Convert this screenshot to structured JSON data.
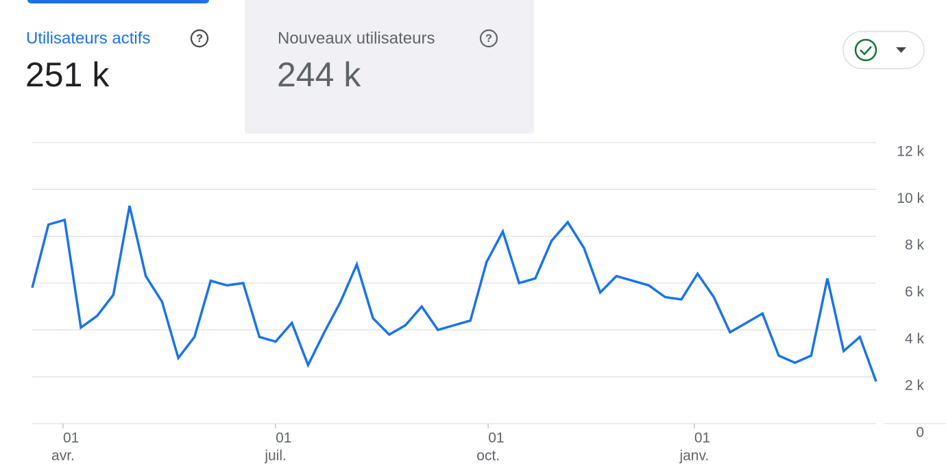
{
  "tabs": [
    {
      "label": "Utilisateurs actifs",
      "value": "251 k"
    },
    {
      "label": "Nouveaux utilisateurs",
      "value": "244 k"
    }
  ],
  "chart_data": {
    "type": "line",
    "color": "#1a73e8",
    "x": [
      0,
      1,
      2,
      3,
      4,
      5,
      6,
      7,
      8,
      9,
      10,
      11,
      12,
      13,
      14,
      15,
      16,
      17,
      18,
      19,
      20,
      21,
      22,
      23,
      24,
      25,
      26,
      27,
      28,
      29,
      30,
      31,
      32,
      33,
      34,
      35,
      36,
      37,
      38,
      39,
      40,
      41,
      42,
      43,
      44,
      45,
      46,
      47,
      48,
      49,
      50,
      51,
      52
    ],
    "values": [
      5800,
      8500,
      8700,
      4100,
      4600,
      5500,
      9300,
      6300,
      5200,
      2800,
      3700,
      6100,
      5900,
      6000,
      3700,
      3500,
      4300,
      2500,
      3900,
      5200,
      6800,
      4500,
      3800,
      4200,
      5000,
      4000,
      4200,
      4400,
      6900,
      8200,
      6000,
      6200,
      7800,
      8600,
      7500,
      5600,
      6300,
      6100,
      5900,
      5400,
      5300,
      6400,
      5400,
      3900,
      4300,
      4700,
      2900,
      2600,
      2900,
      6200,
      3100,
      3700,
      1800
    ],
    "xlim": [
      0,
      52
    ],
    "xticks": [
      {
        "value": 1.9,
        "label": "01"
      },
      {
        "value": 15,
        "label": "01"
      },
      {
        "value": 28.1,
        "label": "01"
      },
      {
        "value": 40.8,
        "label": "01"
      }
    ],
    "x_months": [
      "avr.",
      "juil.",
      "oct.",
      "janv."
    ],
    "ylim": [
      0,
      12000
    ],
    "yticks": [
      0,
      {
        "value": 2000,
        "label": "2 k"
      },
      {
        "value": 4000,
        "label": "4 k"
      },
      {
        "value": 6000,
        "label": "6 k"
      },
      {
        "value": 8000,
        "label": "8 k"
      },
      {
        "value": 10000,
        "label": "10 k"
      },
      {
        "value": 12000,
        "label": "12 k"
      }
    ],
    "grid": true
  }
}
